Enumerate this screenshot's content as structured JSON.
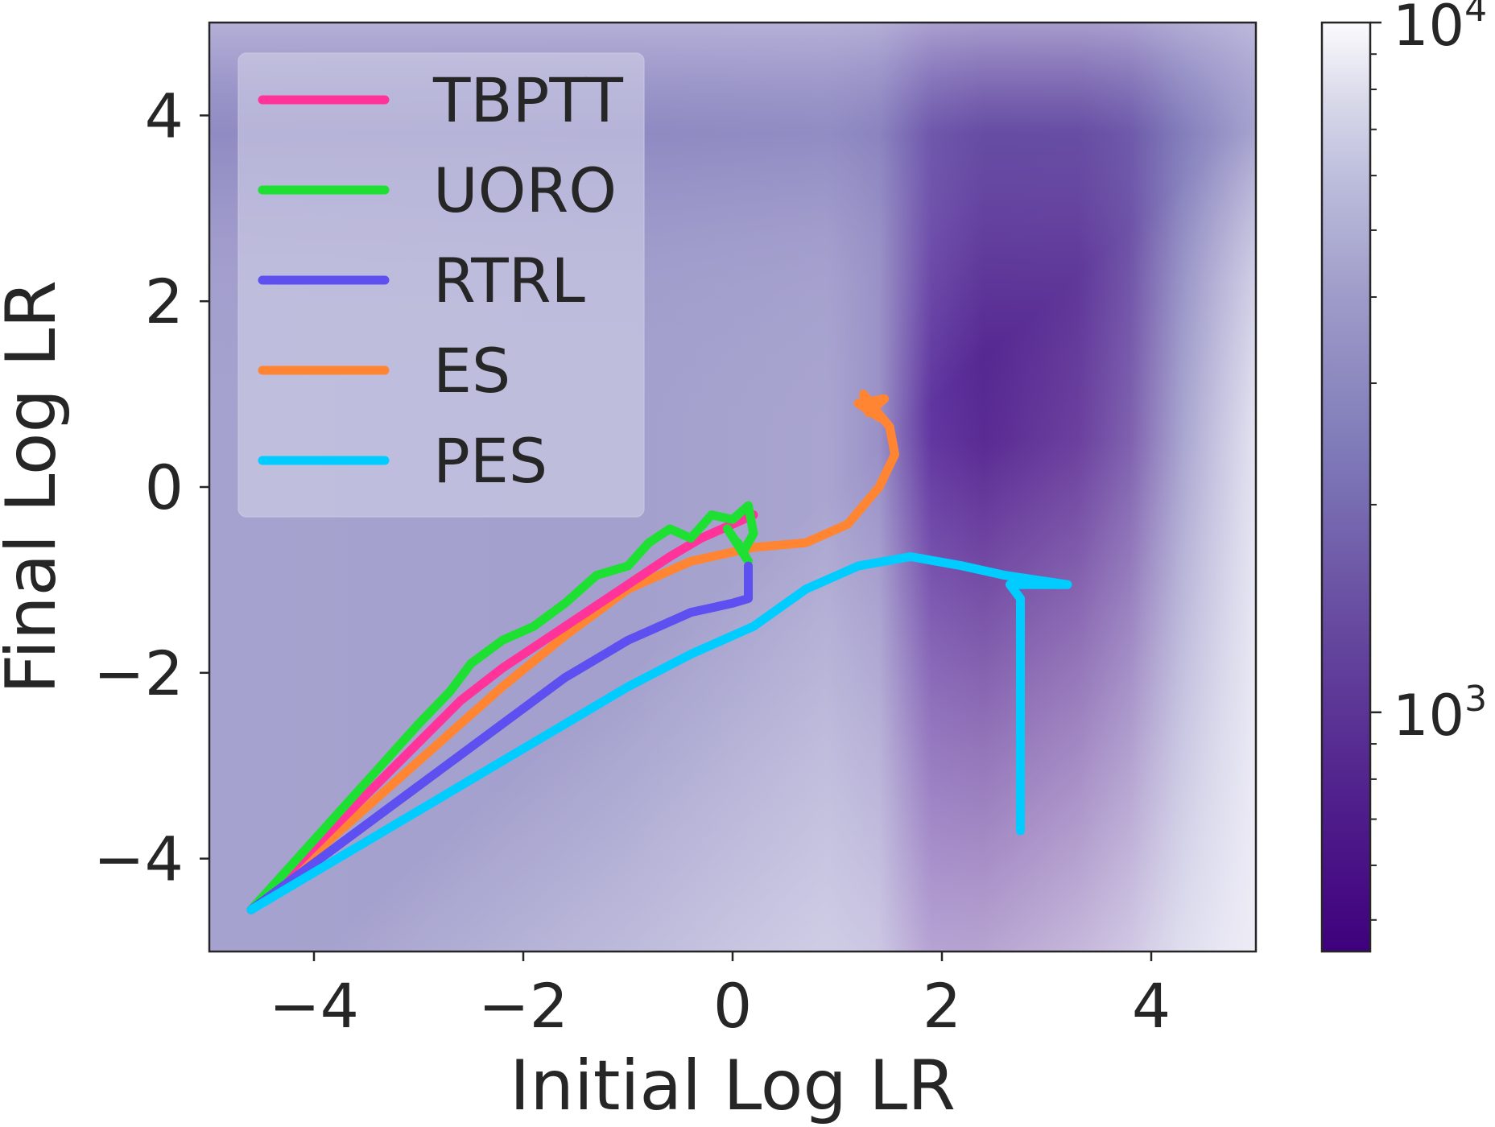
{
  "chart_data": {
    "type": "heatmap",
    "xlabel": "Initial Log LR",
    "ylabel": "Final Log LR",
    "xlim": [
      -5,
      5
    ],
    "ylim": [
      -5,
      5
    ],
    "x_ticks": [
      {
        "value": -4,
        "label": "−4"
      },
      {
        "value": -2,
        "label": "−2"
      },
      {
        "value": 0,
        "label": "0"
      },
      {
        "value": 2,
        "label": "2"
      },
      {
        "value": 4,
        "label": "4"
      }
    ],
    "y_ticks": [
      {
        "value": -4,
        "label": "−4"
      },
      {
        "value": -2,
        "label": "−2"
      },
      {
        "value": 0,
        "label": "0"
      },
      {
        "value": 2,
        "label": "2"
      },
      {
        "value": 4,
        "label": "4"
      }
    ],
    "grid": false,
    "colormap": "Purples_r",
    "colorbar": {
      "scale": "log",
      "range": [
        450,
        10000
      ],
      "ticks": [
        {
          "value": 1000,
          "base": "10",
          "exp": "3"
        },
        {
          "value": 10000,
          "base": "10",
          "exp": "4"
        }
      ]
    },
    "legend": {
      "placement": "top-left",
      "entries": [
        {
          "name": "TBPTT",
          "color": "#ff3399"
        },
        {
          "name": "UORO",
          "color": "#1ee032"
        },
        {
          "name": "RTRL",
          "color": "#5e4ff0"
        },
        {
          "name": "ES",
          "color": "#ff8533"
        },
        {
          "name": "PES",
          "color": "#00ccff"
        }
      ]
    },
    "series": [
      {
        "name": "TBPTT",
        "color": "#ff3399",
        "x": [
          -4.6,
          -4.2,
          -3.8,
          -3.4,
          -3.0,
          -2.6,
          -2.2,
          -1.8,
          -1.4,
          -1.0,
          -0.6,
          -0.3,
          0.0,
          0.2
        ],
        "y": [
          -4.55,
          -4.1,
          -3.65,
          -3.2,
          -2.75,
          -2.3,
          -1.95,
          -1.65,
          -1.35,
          -1.05,
          -0.75,
          -0.55,
          -0.4,
          -0.3
        ]
      },
      {
        "name": "UORO",
        "color": "#1ee032",
        "x": [
          -4.6,
          -4.2,
          -3.8,
          -3.4,
          -3.0,
          -2.7,
          -2.5,
          -2.2,
          -1.9,
          -1.6,
          -1.3,
          -1.0,
          -0.8,
          -0.6,
          -0.4,
          -0.2,
          0.0,
          0.15,
          0.2,
          0.1,
          -0.05,
          0.15,
          0.05
        ],
        "y": [
          -4.55,
          -4.05,
          -3.55,
          -3.05,
          -2.55,
          -2.2,
          -1.9,
          -1.65,
          -1.5,
          -1.25,
          -0.95,
          -0.85,
          -0.6,
          -0.45,
          -0.55,
          -0.3,
          -0.35,
          -0.2,
          -0.5,
          -0.7,
          -0.45,
          -0.8,
          -0.6
        ]
      },
      {
        "name": "RTRL",
        "color": "#5e4ff0",
        "x": [
          -4.6,
          -4.0,
          -3.4,
          -2.8,
          -2.2,
          -1.6,
          -1.0,
          -0.4,
          0.0,
          0.15,
          0.15,
          0.15
        ],
        "y": [
          -4.55,
          -4.05,
          -3.55,
          -3.05,
          -2.55,
          -2.05,
          -1.65,
          -1.35,
          -1.25,
          -1.2,
          -1.0,
          -0.85
        ]
      },
      {
        "name": "ES",
        "color": "#ff8533",
        "x": [
          -4.6,
          -4.0,
          -3.4,
          -2.8,
          -2.2,
          -1.6,
          -1.0,
          -0.4,
          0.2,
          0.7,
          1.1,
          1.4,
          1.55,
          1.5,
          1.35,
          1.25,
          1.3,
          1.45,
          1.2,
          1.4
        ],
        "y": [
          -4.55,
          -3.95,
          -3.35,
          -2.75,
          -2.15,
          -1.6,
          -1.1,
          -0.8,
          -0.65,
          -0.6,
          -0.4,
          0.0,
          0.35,
          0.65,
          0.85,
          1.0,
          0.8,
          0.95,
          0.9,
          0.75
        ]
      },
      {
        "name": "PES",
        "color": "#00ccff",
        "x": [
          -4.6,
          -4.0,
          -3.4,
          -2.8,
          -2.2,
          -1.6,
          -1.0,
          -0.4,
          0.2,
          0.7,
          1.2,
          1.7,
          2.2,
          2.6,
          2.9,
          3.2,
          3.2,
          2.9,
          2.65,
          2.75,
          2.75,
          2.75,
          2.75,
          2.75,
          2.75
        ],
        "y": [
          -4.55,
          -4.15,
          -3.75,
          -3.35,
          -2.95,
          -2.55,
          -2.15,
          -1.8,
          -1.5,
          -1.1,
          -0.85,
          -0.75,
          -0.85,
          -0.95,
          -1.0,
          -1.05,
          -1.05,
          -1.05,
          -1.05,
          -1.2,
          -1.8,
          -2.4,
          -3.0,
          -3.4,
          -3.7
        ]
      }
    ]
  }
}
